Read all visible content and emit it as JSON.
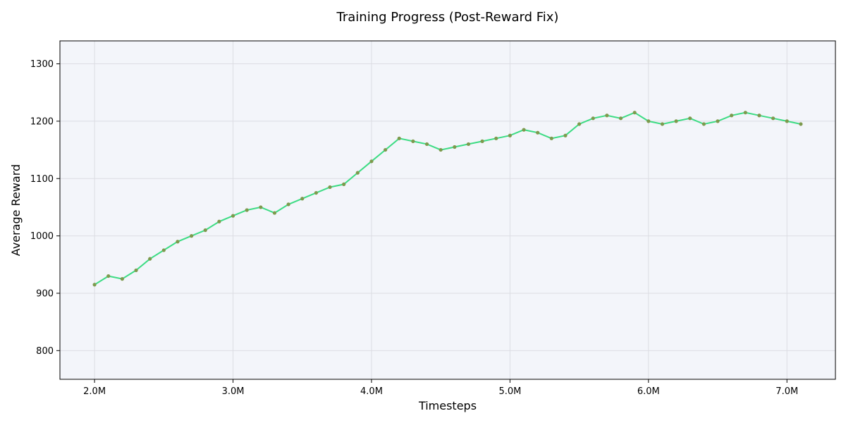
{
  "chart_data": {
    "type": "line",
    "title": "Training Progress (Post-Reward Fix)",
    "xlabel": "Timesteps",
    "ylabel": "Average Reward",
    "xlim": [
      1750000,
      7350000
    ],
    "ylim": [
      750,
      1340
    ],
    "x_ticks": [
      2000000,
      3000000,
      4000000,
      5000000,
      6000000,
      7000000
    ],
    "x_tick_labels": [
      "2.0M",
      "3.0M",
      "4.0M",
      "5.0M",
      "6.0M",
      "7.0M"
    ],
    "y_ticks": [
      800,
      900,
      1000,
      1100,
      1200,
      1300
    ],
    "y_tick_labels": [
      "800",
      "900",
      "1000",
      "1100",
      "1200",
      "1300"
    ],
    "grid": true,
    "colors": {
      "line": "#3ddc84",
      "marker": "#7d9a4e",
      "plot_background": "#f3f5fa",
      "grid": "#dcdde3",
      "axis": "#000000"
    },
    "series": [
      {
        "x": [
          2000000,
          2100000,
          2200000,
          2300000,
          2400000,
          2500000,
          2600000,
          2700000,
          2800000,
          2900000,
          3000000,
          3100000,
          3200000,
          3300000,
          3400000,
          3500000,
          3600000,
          3700000,
          3800000,
          3900000,
          4000000,
          4100000,
          4200000,
          4300000,
          4400000,
          4500000,
          4600000,
          4700000,
          4800000,
          4900000,
          5000000,
          5100000,
          5200000,
          5300000,
          5400000,
          5500000,
          5600000,
          5700000,
          5800000,
          5900000,
          6000000,
          6100000,
          6200000,
          6300000,
          6400000,
          6500000,
          6600000,
          6700000,
          6800000,
          6900000,
          7000000,
          7100000
        ],
        "values": [
          915,
          930,
          925,
          940,
          960,
          975,
          990,
          1000,
          1010,
          1025,
          1035,
          1045,
          1050,
          1040,
          1055,
          1065,
          1075,
          1085,
          1090,
          1110,
          1130,
          1150,
          1170,
          1165,
          1160,
          1150,
          1155,
          1160,
          1165,
          1170,
          1175,
          1185,
          1180,
          1170,
          1175,
          1195,
          1205,
          1210,
          1205,
          1215,
          1200,
          1195,
          1200,
          1205,
          1195,
          1200,
          1210,
          1215,
          1210,
          1205,
          1200,
          1195
        ]
      }
    ]
  }
}
